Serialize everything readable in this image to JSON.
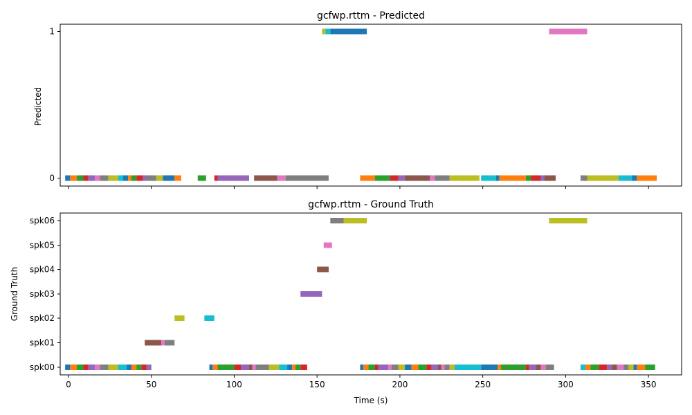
{
  "chart_data": [
    {
      "type": "timeline",
      "title": "gcfwp.rttm - Predicted",
      "ylabel": "Predicted",
      "xlabel": "",
      "xlim": [
        -5,
        370
      ],
      "x_ticks": [
        0,
        50,
        100,
        150,
        200,
        250,
        300,
        350
      ],
      "x_tick_labels_visible": false,
      "rows": [
        "0",
        "1"
      ],
      "segments": [
        {
          "row": "0",
          "start": -2,
          "end": 1,
          "color": "#1f77b4"
        },
        {
          "row": "0",
          "start": 1,
          "end": 5,
          "color": "#ff7f0e"
        },
        {
          "row": "0",
          "start": 5,
          "end": 9,
          "color": "#2ca02c"
        },
        {
          "row": "0",
          "start": 9,
          "end": 12,
          "color": "#d62728"
        },
        {
          "row": "0",
          "start": 12,
          "end": 16,
          "color": "#9467bd"
        },
        {
          "row": "0",
          "start": 16,
          "end": 19,
          "color": "#e377c2"
        },
        {
          "row": "0",
          "start": 19,
          "end": 24,
          "color": "#7f7f7f"
        },
        {
          "row": "0",
          "start": 24,
          "end": 30,
          "color": "#bcbd22"
        },
        {
          "row": "0",
          "start": 30,
          "end": 33,
          "color": "#17becf"
        },
        {
          "row": "0",
          "start": 33,
          "end": 36,
          "color": "#1f77b4"
        },
        {
          "row": "0",
          "start": 36,
          "end": 38,
          "color": "#ff7f0e"
        },
        {
          "row": "0",
          "start": 38,
          "end": 41,
          "color": "#2ca02c"
        },
        {
          "row": "0",
          "start": 41,
          "end": 45,
          "color": "#d62728"
        },
        {
          "row": "0",
          "start": 45,
          "end": 47,
          "color": "#9467bd"
        },
        {
          "row": "0",
          "start": 47,
          "end": 53,
          "color": "#7f7f7f"
        },
        {
          "row": "0",
          "start": 53,
          "end": 57,
          "color": "#bcbd22"
        },
        {
          "row": "0",
          "start": 57,
          "end": 64,
          "color": "#1f77b4"
        },
        {
          "row": "0",
          "start": 64,
          "end": 68,
          "color": "#ff7f0e"
        },
        {
          "row": "0",
          "start": 78,
          "end": 83,
          "color": "#2ca02c"
        },
        {
          "row": "0",
          "start": 88,
          "end": 90,
          "color": "#d62728"
        },
        {
          "row": "0",
          "start": 90,
          "end": 109,
          "color": "#9467bd"
        },
        {
          "row": "0",
          "start": 112,
          "end": 126,
          "color": "#8c564b"
        },
        {
          "row": "0",
          "start": 126,
          "end": 131,
          "color": "#e377c2"
        },
        {
          "row": "0",
          "start": 131,
          "end": 157,
          "color": "#7f7f7f"
        },
        {
          "row": "0",
          "start": 176,
          "end": 185,
          "color": "#ff7f0e"
        },
        {
          "row": "0",
          "start": 185,
          "end": 194,
          "color": "#2ca02c"
        },
        {
          "row": "0",
          "start": 194,
          "end": 199,
          "color": "#d62728"
        },
        {
          "row": "0",
          "start": 199,
          "end": 203,
          "color": "#9467bd"
        },
        {
          "row": "0",
          "start": 203,
          "end": 218,
          "color": "#8c564b"
        },
        {
          "row": "0",
          "start": 218,
          "end": 221,
          "color": "#e377c2"
        },
        {
          "row": "0",
          "start": 221,
          "end": 230,
          "color": "#7f7f7f"
        },
        {
          "row": "0",
          "start": 230,
          "end": 248,
          "color": "#bcbd22"
        },
        {
          "row": "0",
          "start": 249,
          "end": 258,
          "color": "#17becf"
        },
        {
          "row": "0",
          "start": 258,
          "end": 260,
          "color": "#1f77b4"
        },
        {
          "row": "0",
          "start": 260,
          "end": 276,
          "color": "#ff7f0e"
        },
        {
          "row": "0",
          "start": 276,
          "end": 279,
          "color": "#2ca02c"
        },
        {
          "row": "0",
          "start": 279,
          "end": 285,
          "color": "#d62728"
        },
        {
          "row": "0",
          "start": 285,
          "end": 287,
          "color": "#9467bd"
        },
        {
          "row": "0",
          "start": 287,
          "end": 294,
          "color": "#8c564b"
        },
        {
          "row": "0",
          "start": 309,
          "end": 313,
          "color": "#7f7f7f"
        },
        {
          "row": "0",
          "start": 313,
          "end": 332,
          "color": "#bcbd22"
        },
        {
          "row": "0",
          "start": 332,
          "end": 340,
          "color": "#17becf"
        },
        {
          "row": "0",
          "start": 340,
          "end": 343,
          "color": "#1f77b4"
        },
        {
          "row": "0",
          "start": 343,
          "end": 355,
          "color": "#ff7f0e"
        },
        {
          "row": "1",
          "start": 153,
          "end": 155,
          "color": "#bcbd22"
        },
        {
          "row": "1",
          "start": 155,
          "end": 158,
          "color": "#17becf"
        },
        {
          "row": "1",
          "start": 158,
          "end": 180,
          "color": "#1f77b4"
        },
        {
          "row": "1",
          "start": 290,
          "end": 313,
          "color": "#e377c2"
        }
      ]
    },
    {
      "type": "timeline",
      "title": "gcfwp.rttm - Ground Truth",
      "ylabel": "Ground Truth",
      "xlabel": "Time (s)",
      "xlim": [
        -5,
        370
      ],
      "x_ticks": [
        0,
        50,
        100,
        150,
        200,
        250,
        300,
        350
      ],
      "x_tick_labels_visible": true,
      "rows": [
        "spk00",
        "spk01",
        "spk02",
        "spk03",
        "spk04",
        "spk05",
        "spk06"
      ],
      "segments": [
        {
          "row": "spk00",
          "start": -2,
          "end": 1,
          "color": "#1f77b4"
        },
        {
          "row": "spk00",
          "start": 1,
          "end": 5,
          "color": "#ff7f0e"
        },
        {
          "row": "spk00",
          "start": 5,
          "end": 9,
          "color": "#2ca02c"
        },
        {
          "row": "spk00",
          "start": 9,
          "end": 12,
          "color": "#d62728"
        },
        {
          "row": "spk00",
          "start": 12,
          "end": 16,
          "color": "#9467bd"
        },
        {
          "row": "spk00",
          "start": 16,
          "end": 19,
          "color": "#e377c2"
        },
        {
          "row": "spk00",
          "start": 19,
          "end": 24,
          "color": "#7f7f7f"
        },
        {
          "row": "spk00",
          "start": 24,
          "end": 30,
          "color": "#bcbd22"
        },
        {
          "row": "spk00",
          "start": 30,
          "end": 35,
          "color": "#17becf"
        },
        {
          "row": "spk00",
          "start": 35,
          "end": 38,
          "color": "#1f77b4"
        },
        {
          "row": "spk00",
          "start": 38,
          "end": 41,
          "color": "#ff7f0e"
        },
        {
          "row": "spk00",
          "start": 41,
          "end": 44,
          "color": "#2ca02c"
        },
        {
          "row": "spk00",
          "start": 44,
          "end": 47,
          "color": "#d62728"
        },
        {
          "row": "spk00",
          "start": 47,
          "end": 50,
          "color": "#9467bd"
        },
        {
          "row": "spk00",
          "start": 85,
          "end": 87,
          "color": "#1f77b4"
        },
        {
          "row": "spk00",
          "start": 87,
          "end": 90,
          "color": "#ff7f0e"
        },
        {
          "row": "spk00",
          "start": 90,
          "end": 100,
          "color": "#2ca02c"
        },
        {
          "row": "spk00",
          "start": 100,
          "end": 104,
          "color": "#d62728"
        },
        {
          "row": "spk00",
          "start": 104,
          "end": 109,
          "color": "#9467bd"
        },
        {
          "row": "spk00",
          "start": 109,
          "end": 111,
          "color": "#8c564b"
        },
        {
          "row": "spk00",
          "start": 111,
          "end": 113,
          "color": "#e377c2"
        },
        {
          "row": "spk00",
          "start": 113,
          "end": 121,
          "color": "#7f7f7f"
        },
        {
          "row": "spk00",
          "start": 121,
          "end": 127,
          "color": "#bcbd22"
        },
        {
          "row": "spk00",
          "start": 127,
          "end": 132,
          "color": "#17becf"
        },
        {
          "row": "spk00",
          "start": 132,
          "end": 135,
          "color": "#1f77b4"
        },
        {
          "row": "spk00",
          "start": 135,
          "end": 137,
          "color": "#ff7f0e"
        },
        {
          "row": "spk00",
          "start": 137,
          "end": 140,
          "color": "#2ca02c"
        },
        {
          "row": "spk00",
          "start": 140,
          "end": 144,
          "color": "#d62728"
        },
        {
          "row": "spk00",
          "start": 176,
          "end": 178,
          "color": "#1f77b4"
        },
        {
          "row": "spk00",
          "start": 178,
          "end": 181,
          "color": "#ff7f0e"
        },
        {
          "row": "spk00",
          "start": 181,
          "end": 185,
          "color": "#2ca02c"
        },
        {
          "row": "spk00",
          "start": 185,
          "end": 187,
          "color": "#d62728"
        },
        {
          "row": "spk00",
          "start": 187,
          "end": 193,
          "color": "#9467bd"
        },
        {
          "row": "spk00",
          "start": 193,
          "end": 195,
          "color": "#e377c2"
        },
        {
          "row": "spk00",
          "start": 195,
          "end": 199,
          "color": "#7f7f7f"
        },
        {
          "row": "spk00",
          "start": 199,
          "end": 203,
          "color": "#bcbd22"
        },
        {
          "row": "spk00",
          "start": 203,
          "end": 207,
          "color": "#1f77b4"
        },
        {
          "row": "spk00",
          "start": 207,
          "end": 211,
          "color": "#ff7f0e"
        },
        {
          "row": "spk00",
          "start": 211,
          "end": 216,
          "color": "#2ca02c"
        },
        {
          "row": "spk00",
          "start": 216,
          "end": 219,
          "color": "#d62728"
        },
        {
          "row": "spk00",
          "start": 219,
          "end": 223,
          "color": "#9467bd"
        },
        {
          "row": "spk00",
          "start": 223,
          "end": 225,
          "color": "#8c564b"
        },
        {
          "row": "spk00",
          "start": 225,
          "end": 227,
          "color": "#e377c2"
        },
        {
          "row": "spk00",
          "start": 227,
          "end": 230,
          "color": "#7f7f7f"
        },
        {
          "row": "spk00",
          "start": 230,
          "end": 233,
          "color": "#bcbd22"
        },
        {
          "row": "spk00",
          "start": 233,
          "end": 249,
          "color": "#17becf"
        },
        {
          "row": "spk00",
          "start": 249,
          "end": 259,
          "color": "#1f77b4"
        },
        {
          "row": "spk00",
          "start": 259,
          "end": 261,
          "color": "#ff7f0e"
        },
        {
          "row": "spk00",
          "start": 261,
          "end": 276,
          "color": "#2ca02c"
        },
        {
          "row": "spk00",
          "start": 276,
          "end": 278,
          "color": "#d62728"
        },
        {
          "row": "spk00",
          "start": 278,
          "end": 282,
          "color": "#9467bd"
        },
        {
          "row": "spk00",
          "start": 282,
          "end": 285,
          "color": "#8c564b"
        },
        {
          "row": "spk00",
          "start": 285,
          "end": 288,
          "color": "#e377c2"
        },
        {
          "row": "spk00",
          "start": 288,
          "end": 293,
          "color": "#7f7f7f"
        },
        {
          "row": "spk00",
          "start": 309,
          "end": 312,
          "color": "#17becf"
        },
        {
          "row": "spk00",
          "start": 312,
          "end": 315,
          "color": "#ff7f0e"
        },
        {
          "row": "spk00",
          "start": 315,
          "end": 320,
          "color": "#2ca02c"
        },
        {
          "row": "spk00",
          "start": 320,
          "end": 325,
          "color": "#d62728"
        },
        {
          "row": "spk00",
          "start": 325,
          "end": 328,
          "color": "#9467bd"
        },
        {
          "row": "spk00",
          "start": 328,
          "end": 331,
          "color": "#8c564b"
        },
        {
          "row": "spk00",
          "start": 331,
          "end": 335,
          "color": "#e377c2"
        },
        {
          "row": "spk00",
          "start": 335,
          "end": 338,
          "color": "#7f7f7f"
        },
        {
          "row": "spk00",
          "start": 338,
          "end": 341,
          "color": "#bcbd22"
        },
        {
          "row": "spk00",
          "start": 341,
          "end": 343,
          "color": "#1f77b4"
        },
        {
          "row": "spk00",
          "start": 343,
          "end": 348,
          "color": "#ff7f0e"
        },
        {
          "row": "spk00",
          "start": 348,
          "end": 354,
          "color": "#2ca02c"
        },
        {
          "row": "spk01",
          "start": 46,
          "end": 56,
          "color": "#8c564b"
        },
        {
          "row": "spk01",
          "start": 56,
          "end": 58,
          "color": "#e377c2"
        },
        {
          "row": "spk01",
          "start": 58,
          "end": 64,
          "color": "#7f7f7f"
        },
        {
          "row": "spk02",
          "start": 64,
          "end": 70,
          "color": "#bcbd22"
        },
        {
          "row": "spk02",
          "start": 82,
          "end": 88,
          "color": "#17becf"
        },
        {
          "row": "spk03",
          "start": 140,
          "end": 153,
          "color": "#9467bd"
        },
        {
          "row": "spk04",
          "start": 150,
          "end": 157,
          "color": "#8c564b"
        },
        {
          "row": "spk05",
          "start": 154,
          "end": 159,
          "color": "#e377c2"
        },
        {
          "row": "spk06",
          "start": 158,
          "end": 166,
          "color": "#7f7f7f"
        },
        {
          "row": "spk06",
          "start": 166,
          "end": 180,
          "color": "#bcbd22"
        },
        {
          "row": "spk06",
          "start": 290,
          "end": 313,
          "color": "#bcbd22"
        }
      ]
    }
  ]
}
